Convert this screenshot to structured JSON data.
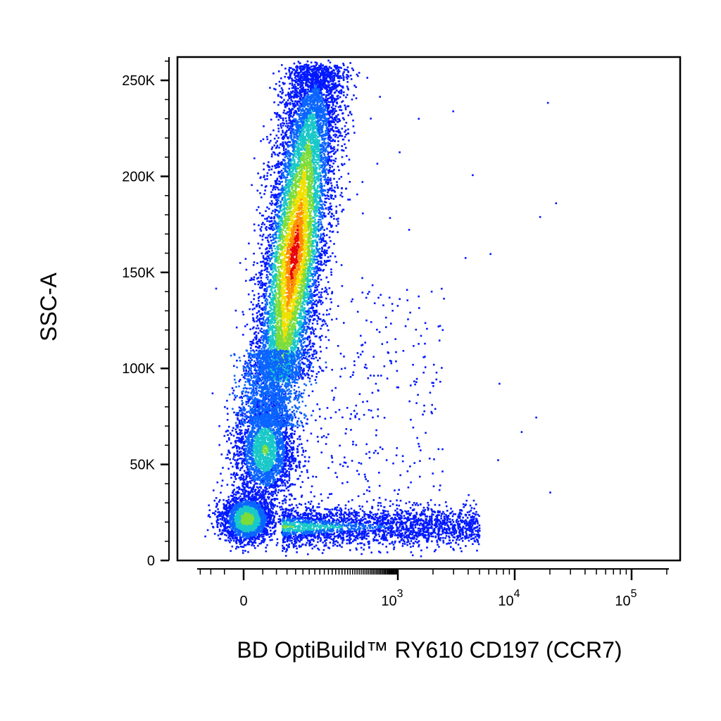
{
  "chart_data": {
    "type": "scatter",
    "style": "density pseudocolor (blue-green-yellow-red)",
    "title": "",
    "xlabel": "BD OptiBuild™ RY610 CD197 (CCR7)",
    "ylabel": "SSC-A",
    "x_scale": "biexponential",
    "y_scale": "linear",
    "ylim": [
      0,
      262144
    ],
    "y_ticks": [
      {
        "value": 0,
        "label": "0"
      },
      {
        "value": 50000,
        "label": "50K"
      },
      {
        "value": 100000,
        "label": "100K"
      },
      {
        "value": 150000,
        "label": "150K"
      },
      {
        "value": 200000,
        "label": "200K"
      },
      {
        "value": 250000,
        "label": "250K"
      }
    ],
    "x_ticks": [
      {
        "value": 0,
        "label": "0",
        "exp": ""
      },
      {
        "value": 1000,
        "label": "10",
        "exp": "3"
      },
      {
        "value": 10000,
        "label": "10",
        "exp": "4"
      },
      {
        "value": 100000,
        "label": "10",
        "exp": "5"
      }
    ],
    "populations": [
      {
        "name": "main",
        "x_center": 220,
        "y_center": 160000,
        "x_spread_log": 0.12,
        "y_range": [
          95000,
          258000
        ],
        "density": "high"
      },
      {
        "name": "mid",
        "x_center": 20,
        "y_center": 58000,
        "x_spread_log": 0.12,
        "y_range": [
          40000,
          95000
        ],
        "density": "medium"
      },
      {
        "name": "low",
        "x_center": 0,
        "y_center": 22000,
        "x_spread_log": 0.1,
        "y_range": [
          8000,
          35000
        ],
        "density": "high"
      },
      {
        "name": "tail",
        "x_range": [
          100,
          4000
        ],
        "y_center": 18000,
        "y_range": [
          10000,
          30000
        ],
        "density": "medium"
      }
    ],
    "grid": false,
    "legend": "none"
  }
}
